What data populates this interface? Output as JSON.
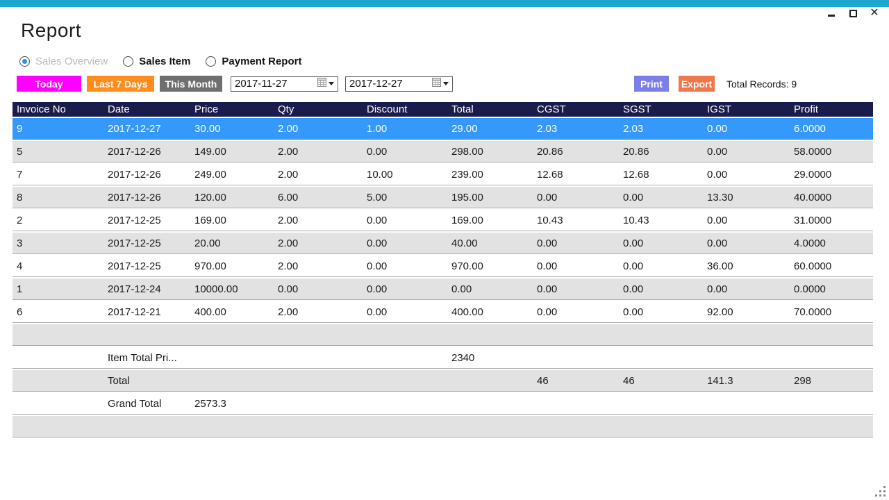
{
  "window": {
    "accent_color": "#1BA8CB",
    "close_glyph": "✕"
  },
  "page": {
    "title": "Report"
  },
  "report_types": [
    {
      "label": "Sales Overview",
      "selected": true
    },
    {
      "label": "Sales Item",
      "selected": false
    },
    {
      "label": "Payment Report",
      "selected": false
    }
  ],
  "toolbar": {
    "today": {
      "label": "Today",
      "color": "#FF00FF"
    },
    "last7": {
      "label": "Last 7 Days",
      "color": "#FF8C1C"
    },
    "month": {
      "label": "This Month",
      "color": "#6F6F6F"
    },
    "date_from": "2017-11-27",
    "date_to": "2017-12-27",
    "print": {
      "label": "Print",
      "color": "#7B7EE4"
    },
    "export": {
      "label": "Export",
      "color": "#F0764B"
    },
    "total_records": "Total Records: 9"
  },
  "table": {
    "header_bg": "#1A1C4B",
    "selected_row_bg": "#3598FB",
    "alt_row_bg": "#E2E2E2",
    "columns": [
      "Invoice No",
      "Date",
      "Price",
      "Qty",
      "Discount",
      "Total",
      "CGST",
      "SGST",
      "IGST",
      "Profit"
    ],
    "rows": [
      {
        "state": "selected",
        "cells": [
          "9",
          "2017-12-27",
          "30.00",
          "2.00",
          "1.00",
          "29.00",
          "2.03",
          "2.03",
          "0.00",
          "6.0000"
        ]
      },
      {
        "state": "alt",
        "cells": [
          "5",
          "2017-12-26",
          "149.00",
          "2.00",
          "0.00",
          "298.00",
          "20.86",
          "20.86",
          "0.00",
          "58.0000"
        ]
      },
      {
        "state": "normal",
        "cells": [
          "7",
          "2017-12-26",
          "249.00",
          "2.00",
          "10.00",
          "239.00",
          "12.68",
          "12.68",
          "0.00",
          "29.0000"
        ]
      },
      {
        "state": "alt",
        "cells": [
          "8",
          "2017-12-26",
          "120.00",
          "6.00",
          "5.00",
          "195.00",
          "0.00",
          "0.00",
          "13.30",
          "40.0000"
        ]
      },
      {
        "state": "normal",
        "cells": [
          "2",
          "2017-12-25",
          "169.00",
          "2.00",
          "0.00",
          "169.00",
          "10.43",
          "10.43",
          "0.00",
          "31.0000"
        ]
      },
      {
        "state": "alt",
        "cells": [
          "3",
          "2017-12-25",
          "20.00",
          "2.00",
          "0.00",
          "40.00",
          "0.00",
          "0.00",
          "0.00",
          "4.0000"
        ]
      },
      {
        "state": "normal",
        "cells": [
          "4",
          "2017-12-25",
          "970.00",
          "2.00",
          "0.00",
          "970.00",
          "0.00",
          "0.00",
          "36.00",
          "60.0000"
        ]
      },
      {
        "state": "alt",
        "cells": [
          "1",
          "2017-12-24",
          "10000.00",
          "0.00",
          "0.00",
          "0.00",
          "0.00",
          "0.00",
          "0.00",
          "0.0000"
        ]
      },
      {
        "state": "normal",
        "cells": [
          "6",
          "2017-12-21",
          "400.00",
          "2.00",
          "0.00",
          "400.00",
          "0.00",
          "0.00",
          "92.00",
          "70.0000"
        ]
      },
      {
        "state": "alt",
        "cells": [
          "",
          "",
          "",
          "",
          "",
          "",
          "",
          "",
          "",
          ""
        ]
      },
      {
        "state": "normal",
        "cells": [
          "",
          "Item Total Pri...",
          "",
          "",
          "",
          "2340",
          "",
          "",
          "",
          ""
        ]
      },
      {
        "state": "alt",
        "cells": [
          "",
          "Total",
          "",
          "",
          "",
          "",
          "46",
          "46",
          "141.3",
          "298"
        ]
      },
      {
        "state": "normal",
        "cells": [
          "",
          "Grand Total",
          "2573.3",
          "",
          "",
          "",
          "",
          "",
          "",
          ""
        ]
      },
      {
        "state": "alt",
        "cells": [
          "",
          "",
          "",
          "",
          "",
          "",
          "",
          "",
          "",
          ""
        ]
      }
    ]
  }
}
